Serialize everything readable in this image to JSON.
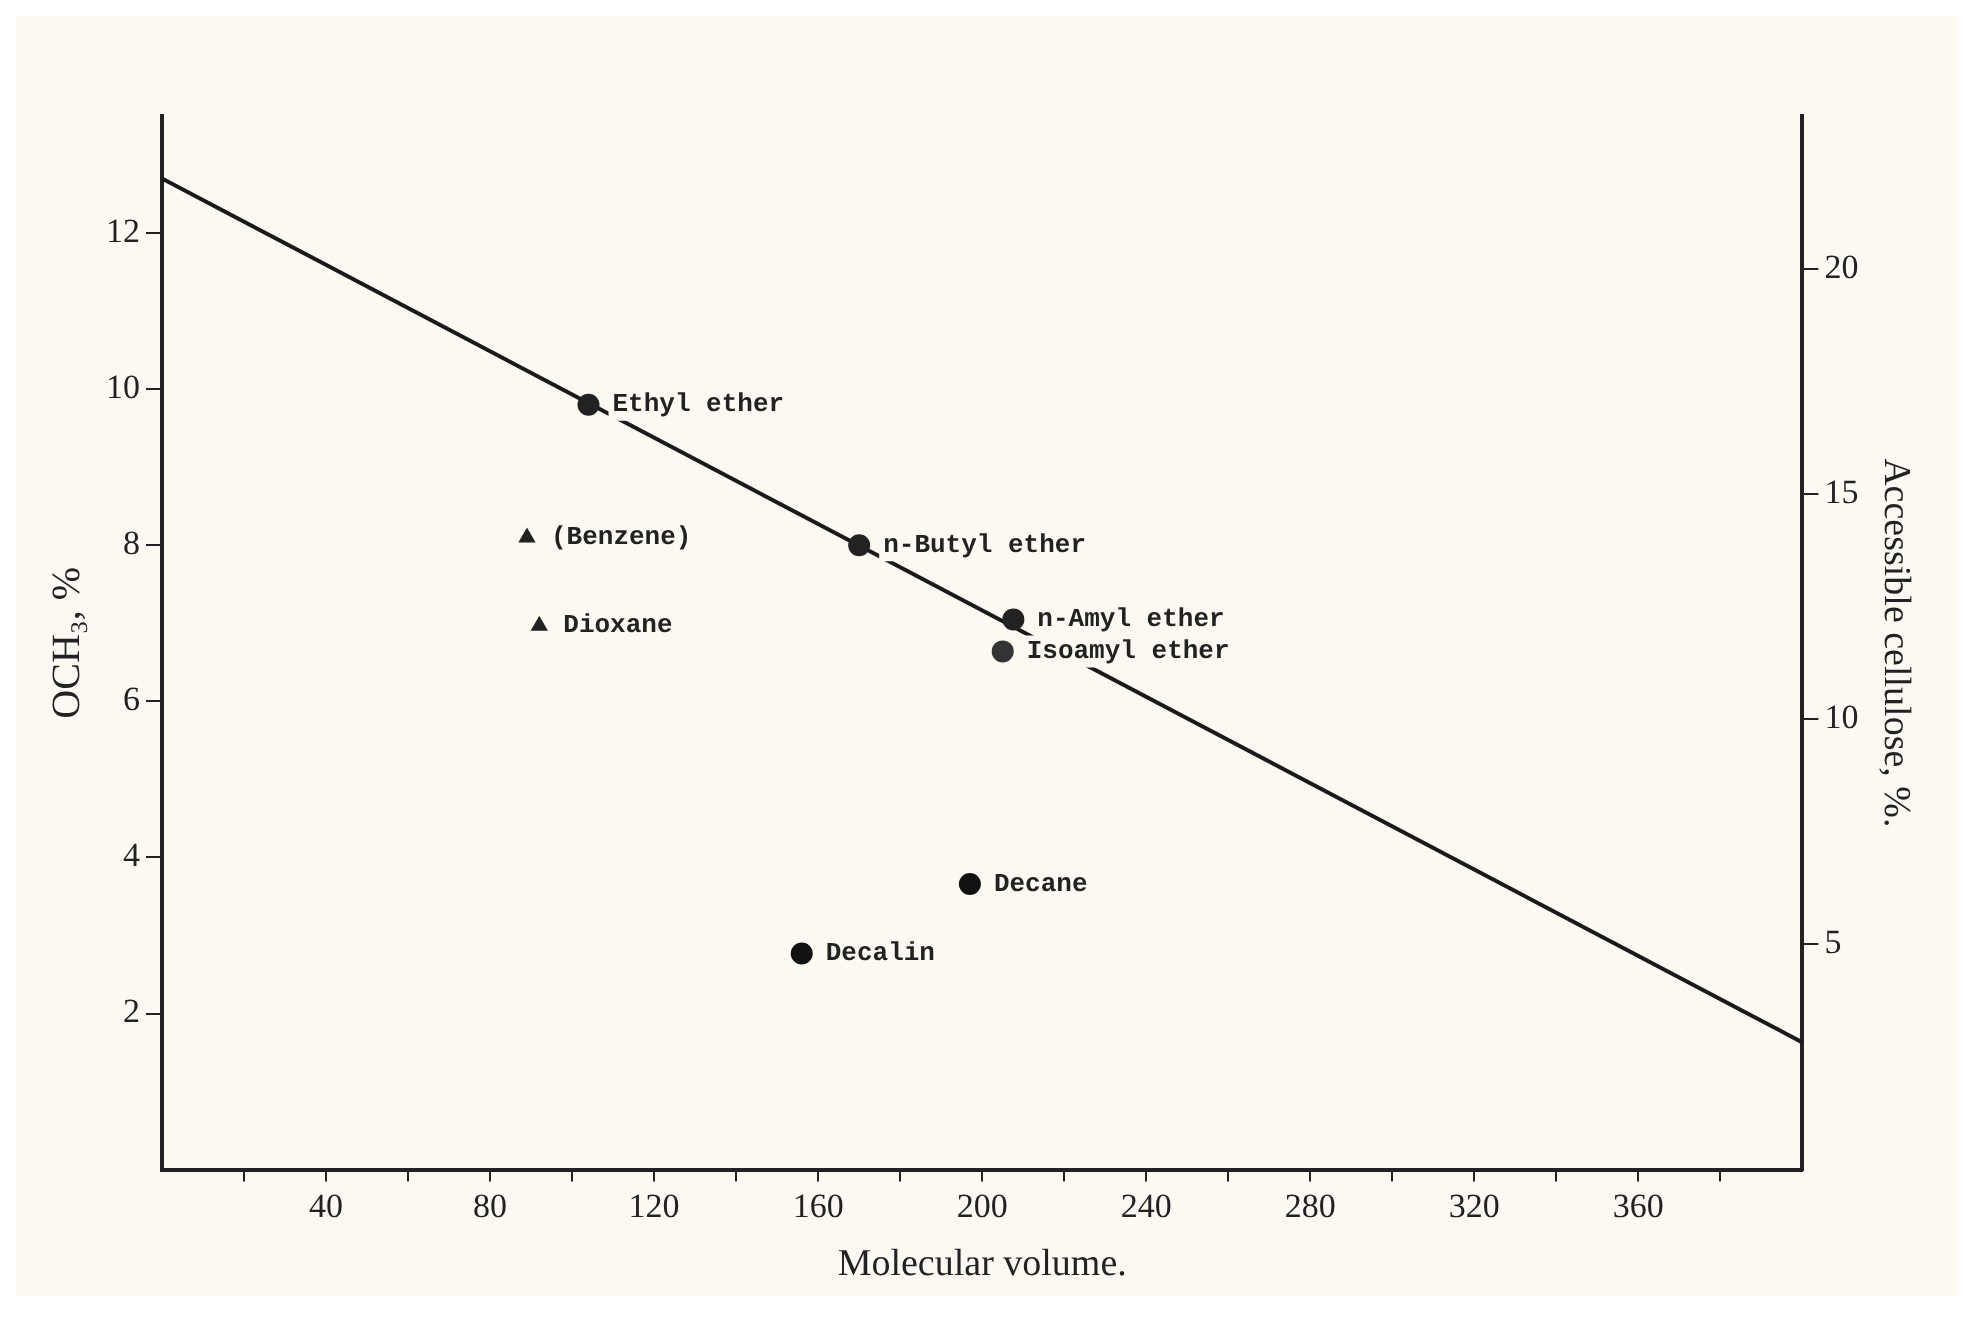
{
  "chart_data": {
    "type": "scatter",
    "xlabel": "Molecular volume.",
    "ylabel": "OCH₃, %",
    "y2label": "Accessible cellulose, %.",
    "xlim": [
      0,
      400
    ],
    "ylim": [
      0,
      13.5
    ],
    "y2lim": [
      0,
      23.4
    ],
    "xticks": [
      {
        "value": 20,
        "label": null
      },
      40,
      {
        "value": 60,
        "label": null
      },
      80,
      {
        "value": 100,
        "label": null
      },
      120,
      {
        "value": 140,
        "label": null
      },
      160,
      {
        "value": 180,
        "label": null
      },
      200,
      {
        "value": 220,
        "label": null
      },
      240,
      {
        "value": 260,
        "label": null
      },
      280,
      {
        "value": 300,
        "label": null
      },
      320,
      {
        "value": 340,
        "label": null
      },
      360,
      {
        "value": 380,
        "label": null
      }
    ],
    "yticks": [
      2,
      4,
      6,
      8,
      10,
      12
    ],
    "y2ticks": [
      5,
      10,
      15,
      20
    ],
    "grid": false,
    "legend": false,
    "series": [
      {
        "name": "Ethyl ether",
        "marker": "circle",
        "color": "#222222",
        "x": [
          104
        ],
        "values": [
          9.8
        ]
      },
      {
        "name": "n-Butyl ether",
        "marker": "circle",
        "color": "#222222",
        "x": [
          170
        ],
        "values": [
          8.0
        ]
      },
      {
        "name": "n-Amyl ether",
        "marker": "circle",
        "color": "#222222",
        "x": [
          207.6
        ],
        "values": [
          7.05
        ]
      },
      {
        "name": "Isoamyl ether",
        "marker": "circle",
        "color": "#333333",
        "x": [
          205
        ],
        "values": [
          6.64
        ]
      },
      {
        "name": "Decane",
        "marker": "circle",
        "color": "#111111",
        "x": [
          197
        ],
        "values": [
          3.66
        ]
      },
      {
        "name": "Decalin",
        "marker": "circle",
        "color": "#111111",
        "x": [
          156
        ],
        "values": [
          2.77
        ]
      },
      {
        "name": "(Benzene)",
        "marker": "triangle",
        "color": "#222222",
        "x": [
          89
        ],
        "values": [
          8.1
        ]
      },
      {
        "name": "Dioxane",
        "marker": "triangle",
        "color": "#222222",
        "x": [
          92
        ],
        "values": [
          6.97
        ]
      },
      {
        "type": "line",
        "color": "#1a1a1a",
        "x": [
          0,
          400
        ],
        "values": [
          12.7,
          1.63
        ]
      }
    ]
  }
}
